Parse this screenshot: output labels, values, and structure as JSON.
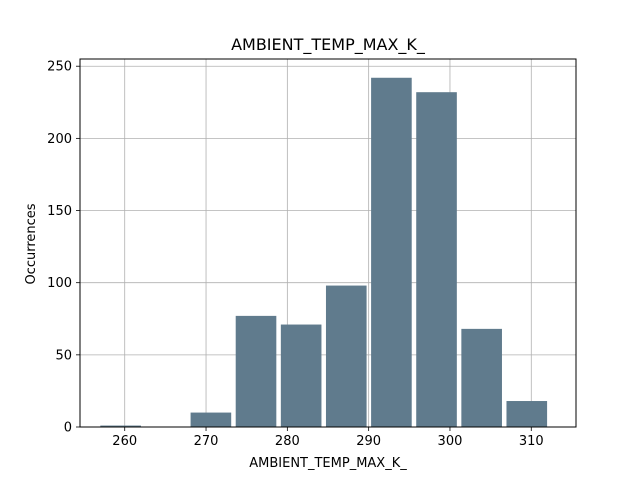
{
  "chart_data": {
    "type": "bar",
    "title": "AMBIENT_TEMP_MAX_K_",
    "xlabel": "AMBIENT_TEMP_MAX_K_",
    "ylabel": "Occurrences",
    "xlim": [
      254.5,
      315.5
    ],
    "ylim": [
      0,
      255
    ],
    "xticks": [
      260,
      270,
      280,
      290,
      300,
      310
    ],
    "yticks": [
      0,
      50,
      100,
      150,
      200,
      250
    ],
    "grid": true,
    "bin_width": 5.55,
    "bar_fraction": 0.9,
    "bins": [
      {
        "start": 257.0,
        "value": 1
      },
      {
        "start": 262.55,
        "value": 0
      },
      {
        "start": 268.1,
        "value": 10
      },
      {
        "start": 273.65,
        "value": 77
      },
      {
        "start": 279.2,
        "value": 71
      },
      {
        "start": 284.75,
        "value": 98
      },
      {
        "start": 290.3,
        "value": 242
      },
      {
        "start": 295.85,
        "value": 232
      },
      {
        "start": 301.4,
        "value": 68
      },
      {
        "start": 306.95,
        "value": 18
      }
    ],
    "colors": {
      "bar": "#607b8d",
      "grid": "#b0b0b0",
      "axis": "#000000"
    }
  }
}
